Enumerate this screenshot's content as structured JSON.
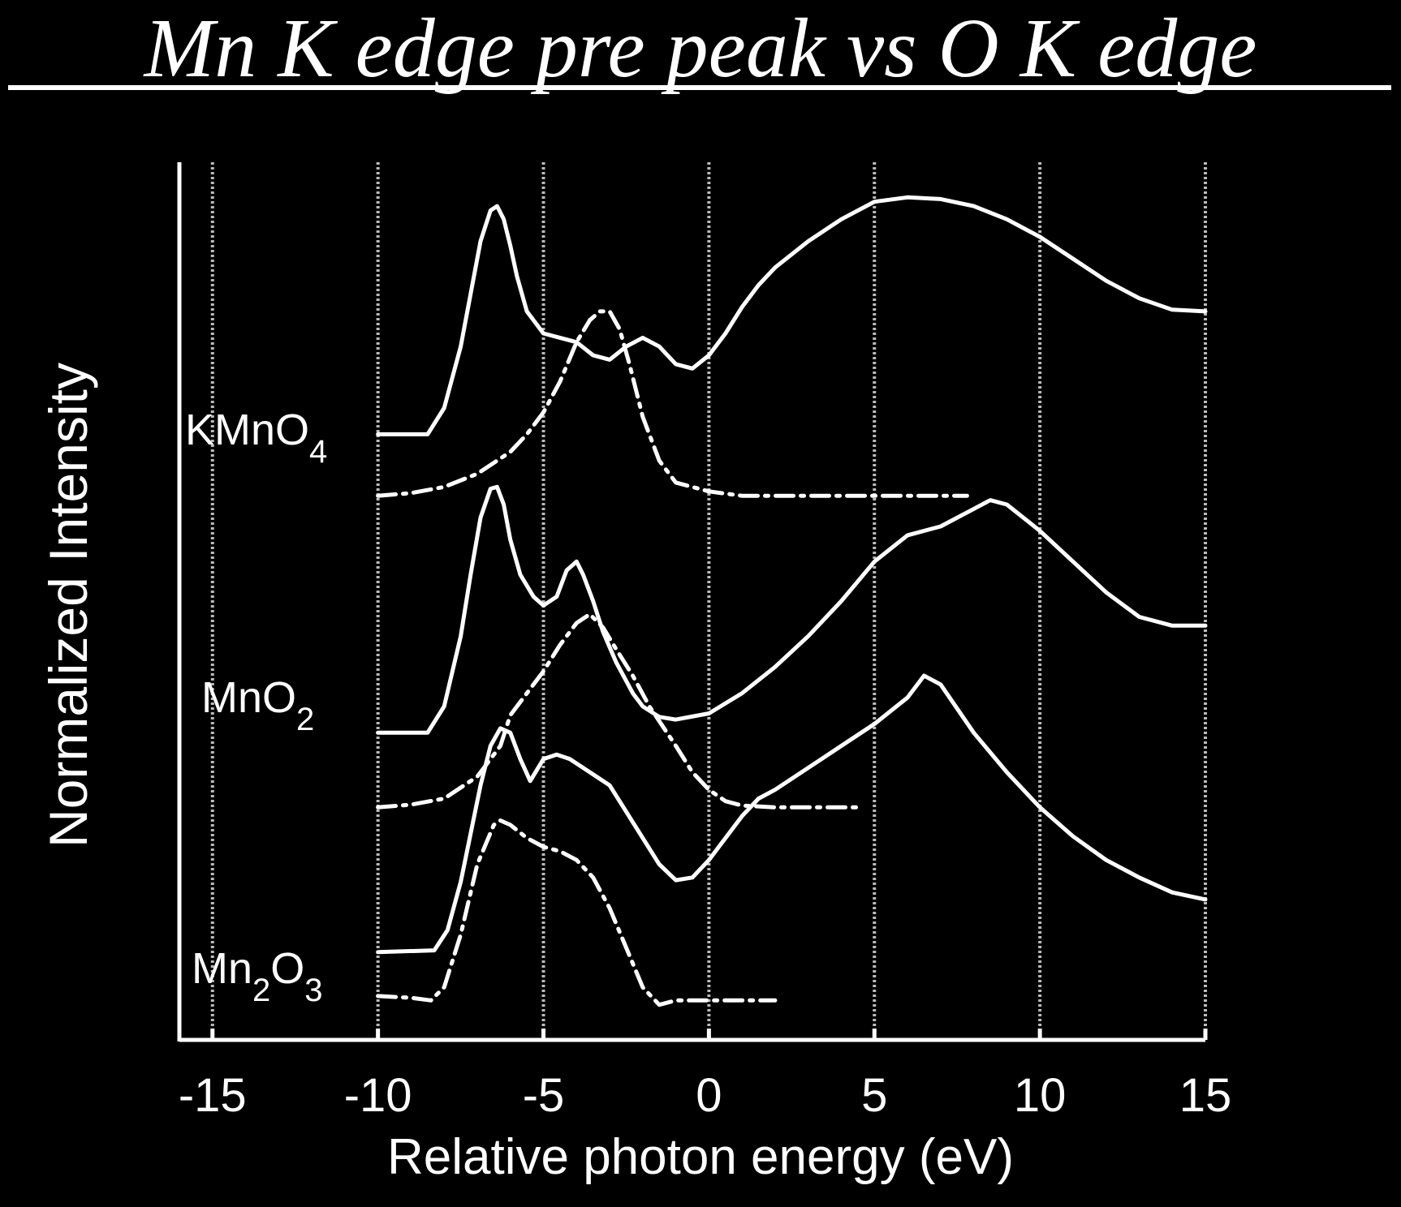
{
  "chart_data": {
    "type": "line",
    "title": "Mn K edge pre peak vs O K edge",
    "xlabel": "Relative photon energy (eV)",
    "ylabel": "Normalized Intensity",
    "xlim": [
      -16,
      15
    ],
    "ylim": [
      0,
      10
    ],
    "xticks": [
      "-15",
      "-10",
      "-5",
      "0",
      "5",
      "10",
      "15"
    ],
    "grid": "vertical",
    "compounds": [
      {
        "base": "KMnO",
        "sub": "4",
        "sub_after": ""
      },
      {
        "base": "MnO",
        "sub": "2",
        "sub_after": ""
      },
      {
        "base": "Mn",
        "sub": "2",
        "mid": "O",
        "sub2": "3"
      }
    ],
    "series": [
      {
        "group": "KMnO4",
        "style": "solid",
        "x": [
          -10,
          -8.5,
          -8,
          -7.5,
          -7.2,
          -6.9,
          -6.6,
          -6.4,
          -6.2,
          -6,
          -5.8,
          -5.5,
          -5,
          -4.5,
          -4,
          -3.5,
          -3,
          -2.5,
          -2,
          -1.5,
          -1,
          -0.5,
          0,
          0.5,
          1,
          1.5,
          2,
          3,
          4,
          5,
          6,
          7,
          8,
          9,
          10,
          11,
          12,
          13,
          14,
          15
        ],
        "y": [
          6.9,
          6.9,
          7.2,
          7.9,
          8.5,
          9.1,
          9.45,
          9.5,
          9.35,
          9.05,
          8.7,
          8.3,
          8.05,
          8.0,
          7.95,
          7.8,
          7.75,
          7.9,
          8.0,
          7.9,
          7.7,
          7.65,
          7.8,
          8.05,
          8.35,
          8.6,
          8.8,
          9.1,
          9.35,
          9.55,
          9.6,
          9.58,
          9.5,
          9.35,
          9.15,
          8.9,
          8.65,
          8.45,
          8.32,
          8.3
        ]
      },
      {
        "group": "KMnO4",
        "style": "dashdot",
        "x": [
          -10,
          -9,
          -8,
          -7,
          -6,
          -5.5,
          -5,
          -4.5,
          -4,
          -3.6,
          -3.3,
          -3,
          -2.7,
          -2.4,
          -2,
          -1.5,
          -1,
          0,
          1,
          2,
          3,
          4,
          5,
          6,
          7,
          7.8
        ],
        "y": [
          6.2,
          6.23,
          6.3,
          6.45,
          6.7,
          6.9,
          7.15,
          7.5,
          7.95,
          8.2,
          8.3,
          8.3,
          8.1,
          7.7,
          7.1,
          6.6,
          6.35,
          6.25,
          6.2,
          6.2,
          6.2,
          6.2,
          6.2,
          6.2,
          6.2,
          6.2
        ]
      },
      {
        "group": "MnO2",
        "style": "solid",
        "x": [
          -10,
          -8.5,
          -8,
          -7.5,
          -7.2,
          -6.9,
          -6.6,
          -6.4,
          -6.2,
          -6,
          -5.7,
          -5.3,
          -5,
          -4.6,
          -4.3,
          -4,
          -3.8,
          -3.5,
          -3.2,
          -2.8,
          -2.3,
          -2,
          -1.5,
          -1,
          0,
          1,
          2,
          3,
          4,
          5,
          6,
          7,
          8,
          8.5,
          9,
          10,
          11,
          12,
          13,
          14,
          15
        ],
        "y": [
          3.5,
          3.5,
          3.8,
          4.6,
          5.3,
          5.95,
          6.28,
          6.3,
          6.1,
          5.7,
          5.3,
          5.05,
          4.95,
          5.05,
          5.35,
          5.45,
          5.3,
          5.0,
          4.65,
          4.3,
          3.95,
          3.8,
          3.68,
          3.65,
          3.72,
          3.95,
          4.25,
          4.6,
          5.0,
          5.45,
          5.75,
          5.85,
          6.05,
          6.15,
          6.1,
          5.8,
          5.45,
          5.1,
          4.82,
          4.72,
          4.72
        ]
      },
      {
        "group": "MnO2",
        "style": "dashdot",
        "x": [
          -10,
          -9,
          -8,
          -7,
          -6.3,
          -6,
          -5.5,
          -5,
          -4.5,
          -4,
          -3.6,
          -3.2,
          -2.8,
          -2.3,
          -1.8,
          -1,
          -0.5,
          0,
          0.5,
          1,
          2,
          3,
          4,
          4.6
        ],
        "y": [
          2.65,
          2.68,
          2.75,
          3.0,
          3.35,
          3.7,
          3.95,
          4.2,
          4.5,
          4.75,
          4.85,
          4.7,
          4.45,
          4.15,
          3.8,
          3.35,
          3.05,
          2.85,
          2.72,
          2.67,
          2.65,
          2.65,
          2.65,
          2.65
        ]
      },
      {
        "group": "Mn2O3",
        "style": "solid",
        "x": [
          -10,
          -8.3,
          -7.9,
          -7.5,
          -7.2,
          -6.9,
          -6.6,
          -6.3,
          -6.0,
          -5.7,
          -5.4,
          -5.0,
          -4.6,
          -4.2,
          -3.8,
          -3.4,
          -3,
          -2.5,
          -2,
          -1.5,
          -1,
          -0.5,
          0,
          0.5,
          1,
          1.5,
          2,
          3,
          4,
          5,
          6,
          6.5,
          7,
          8,
          9,
          10,
          11,
          12,
          13,
          14,
          15
        ],
        "y": [
          1.0,
          1.02,
          1.25,
          1.8,
          2.35,
          2.9,
          3.35,
          3.55,
          3.5,
          3.2,
          2.95,
          3.2,
          3.25,
          3.2,
          3.1,
          3.0,
          2.9,
          2.6,
          2.3,
          2.0,
          1.82,
          1.85,
          2.05,
          2.3,
          2.55,
          2.75,
          2.85,
          3.1,
          3.35,
          3.6,
          3.9,
          4.15,
          4.05,
          3.5,
          3.05,
          2.65,
          2.32,
          2.05,
          1.85,
          1.68,
          1.6
        ]
      },
      {
        "group": "Mn2O3",
        "style": "dashdot",
        "x": [
          -10,
          -9,
          -8.4,
          -8,
          -7.5,
          -7,
          -6.5,
          -6.3,
          -6,
          -5.5,
          -5,
          -4.5,
          -4,
          -3.5,
          -3,
          -2.5,
          -2,
          -1.5,
          -1,
          0,
          1,
          2
        ],
        "y": [
          0.5,
          0.48,
          0.45,
          0.6,
          1.2,
          2.0,
          2.45,
          2.5,
          2.45,
          2.3,
          2.2,
          2.15,
          2.05,
          1.85,
          1.5,
          1.05,
          0.6,
          0.4,
          0.45,
          0.45,
          0.45,
          0.45
        ]
      }
    ]
  }
}
